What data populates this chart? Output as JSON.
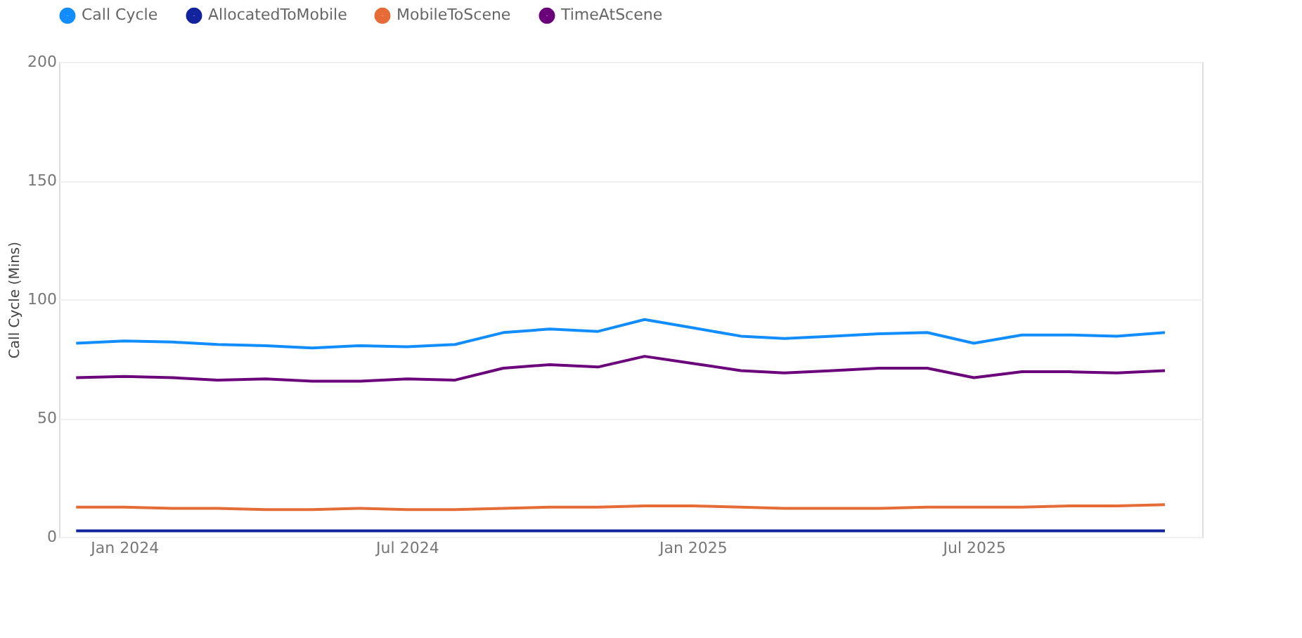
{
  "chart_data": {
    "type": "line",
    "ylabel": "Call Cycle (Mins)",
    "x": [
      "2023-12",
      "2024-01",
      "2024-02",
      "2024-03",
      "2024-04",
      "2024-05",
      "2024-06",
      "2024-07",
      "2024-08",
      "2024-09",
      "2024-10",
      "2024-11",
      "2024-12",
      "2025-01",
      "2025-02",
      "2025-03",
      "2025-04",
      "2025-05",
      "2025-06",
      "2025-07",
      "2025-08",
      "2025-09",
      "2025-10",
      "2025-11"
    ],
    "series": [
      {
        "name": "Call Cycle",
        "color": "#118dff",
        "values": [
          81.5,
          82.5,
          82,
          81,
          80.5,
          79.5,
          80.5,
          80,
          81,
          86,
          87.5,
          86.5,
          91.5,
          88,
          84.5,
          83.5,
          84.5,
          85.5,
          86,
          81.5,
          85,
          85,
          84.5,
          86
        ]
      },
      {
        "name": "AllocatedToMobile",
        "color": "#12239e",
        "values": [
          2.5,
          2.5,
          2.5,
          2.5,
          2.5,
          2.5,
          2.5,
          2.5,
          2.5,
          2.5,
          2.5,
          2.5,
          2.5,
          2.5,
          2.5,
          2.5,
          2.5,
          2.5,
          2.5,
          2.5,
          2.5,
          2.5,
          2.5,
          2.5
        ]
      },
      {
        "name": "MobileToScene",
        "color": "#e66c37",
        "values": [
          12.5,
          12.5,
          12,
          12,
          11.5,
          11.5,
          12,
          11.5,
          11.5,
          12,
          12.5,
          12.5,
          13,
          13,
          12.5,
          12,
          12,
          12,
          12.5,
          12.5,
          12.5,
          13,
          13,
          13.5
        ]
      },
      {
        "name": "TimeAtScene",
        "color": "#6b007b",
        "values": [
          67,
          67.5,
          67,
          66,
          66.5,
          65.5,
          65.5,
          66.5,
          66,
          71,
          72.5,
          71.5,
          76,
          73,
          70,
          69,
          70,
          71,
          71,
          67,
          69.5,
          69.5,
          69,
          70
        ]
      }
    ],
    "xlim": [
      "2023-11-20",
      "2025-11-25"
    ],
    "xticks": [
      {
        "value": "2024-01",
        "label": "Jan 2024"
      },
      {
        "value": "2024-07",
        "label": "Jul 2024"
      },
      {
        "value": "2025-01",
        "label": "Jan 2025"
      },
      {
        "value": "2025-07",
        "label": "Jul 2025"
      }
    ],
    "ylim": [
      0,
      200
    ],
    "yticks": [
      0,
      50,
      100,
      150,
      200
    ],
    "grid": "y",
    "legend": "top",
    "marker": "none",
    "line_style": "solid"
  }
}
